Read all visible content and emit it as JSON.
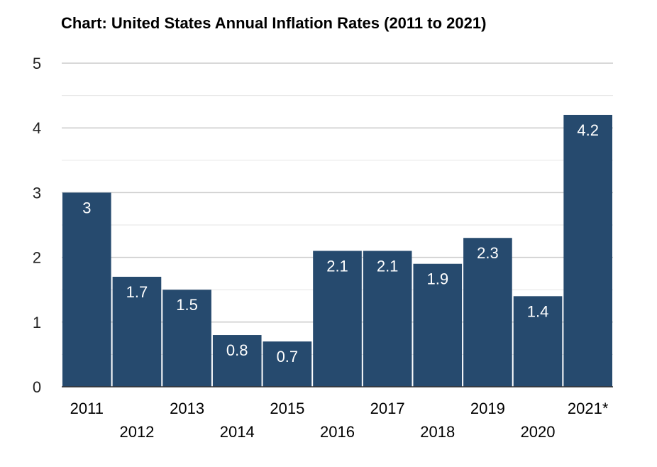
{
  "chart_data": {
    "type": "bar",
    "title": "Chart: United States Annual Inflation Rates (2011 to 2021)",
    "xlabel": "",
    "ylabel": "",
    "categories": [
      "2011",
      "2012",
      "2013",
      "2014",
      "2015",
      "2016",
      "2017",
      "2018",
      "2019",
      "2020",
      "2021*"
    ],
    "values": [
      3,
      1.7,
      1.5,
      0.8,
      0.7,
      2.1,
      2.1,
      1.9,
      2.3,
      1.4,
      4.2
    ],
    "data_labels": [
      "3",
      "1.7",
      "1.5",
      "0.8",
      "0.7",
      "2.1",
      "2.1",
      "1.9",
      "2.3",
      "1.4",
      "4.2"
    ],
    "ylim": [
      0,
      5
    ],
    "y_ticks": [
      "0",
      "1",
      "2",
      "3",
      "4",
      "5"
    ],
    "grid": true,
    "legend": "none",
    "colors": {
      "bar": "#264a6e",
      "grid_major": "#cccccc",
      "grid_minor": "#e6e6e6",
      "baseline": "#333333"
    }
  }
}
